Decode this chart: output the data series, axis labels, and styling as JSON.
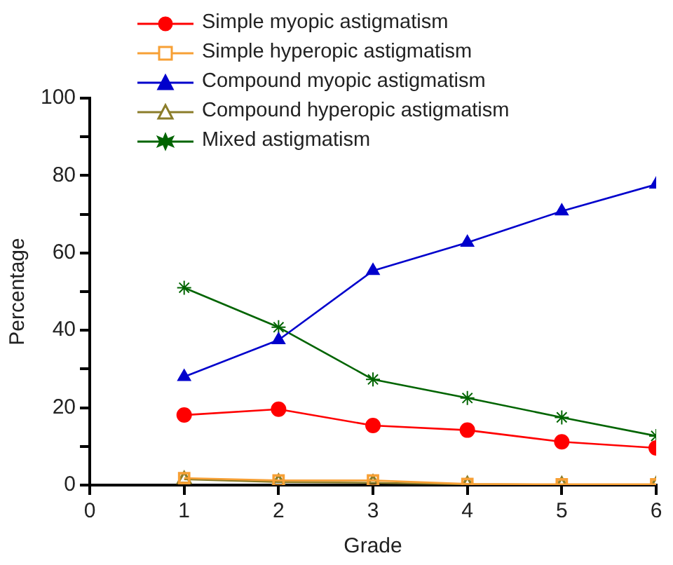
{
  "chart_data": {
    "type": "line",
    "xlabel": "Grade",
    "ylabel": "Percentage",
    "x": [
      1,
      2,
      3,
      4,
      5,
      6
    ],
    "xlim": [
      0,
      6
    ],
    "xticks": [
      0,
      1,
      2,
      3,
      4,
      5,
      6
    ],
    "ylim": [
      0,
      100
    ],
    "yticks": [
      0,
      {
        "value": 10,
        "label": null
      },
      20,
      {
        "value": 30,
        "label": null
      },
      40,
      {
        "value": 50,
        "label": null
      },
      60,
      {
        "value": 70,
        "label": null
      },
      80,
      {
        "value": 90,
        "label": null
      },
      100
    ],
    "grid": false,
    "legend": "top",
    "line_style": "solid",
    "series": [
      {
        "name": "Simple myopic astigmatism",
        "color": "#ff0000",
        "marker": "circle",
        "values": [
          18.1,
          19.6,
          15.4,
          14.2,
          11.2,
          9.6
        ]
      },
      {
        "name": "Simple hyperopic astigmatism",
        "color": "#f7a035",
        "marker": "square",
        "values": [
          1.8,
          1.2,
          1.2,
          0.3,
          0.2,
          0.2
        ]
      },
      {
        "name": "Compound myopic astigmatism",
        "color": "#0000cc",
        "marker": "triangle",
        "values": [
          28,
          37.5,
          55.4,
          62.7,
          70.8,
          77.7
        ]
      },
      {
        "name": "Compound hyperopic astigmatism",
        "color": "#8b7d2a",
        "marker": "triangle",
        "values": [
          1.5,
          0.8,
          0.6,
          0.2,
          0.1,
          0.1
        ]
      },
      {
        "name": "Mixed astigmatism",
        "color": "#006400",
        "marker": "cross",
        "values": [
          51,
          40.8,
          27.3,
          22.5,
          17.5,
          12.7
        ]
      }
    ]
  }
}
